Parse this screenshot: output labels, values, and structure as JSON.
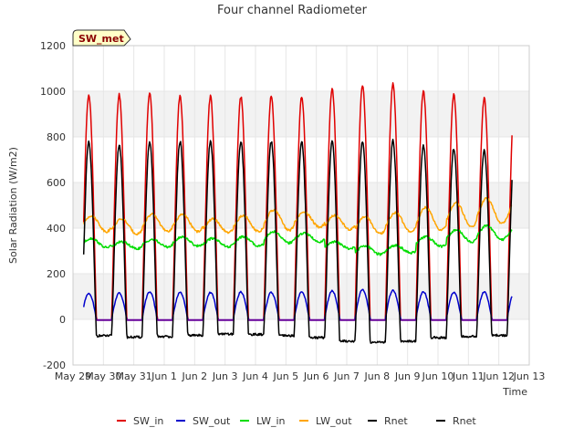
{
  "chart_data": {
    "type": "line",
    "title": "Four channel Radiometer",
    "badge": "SW_met",
    "xlabel": "Time",
    "ylabel": "Solar Radiation (W/m2)",
    "xlim": [
      0,
      15
    ],
    "ylim": [
      -200,
      1200
    ],
    "yticks": [
      -200,
      0,
      200,
      400,
      600,
      800,
      1000,
      1200
    ],
    "xtick_labels": [
      "May 29",
      "May 30",
      "May 31",
      "Jun 1",
      "Jun 2",
      "Jun 3",
      "Jun 4",
      "Jun 5",
      "Jun 6",
      "Jun 7",
      "Jun 8",
      "Jun 9",
      "Jun 10",
      "Jun 11",
      "Jun 12",
      "Jun 13"
    ],
    "x_start_day": 0.35,
    "x_end_day": 14.45,
    "points_per_day": 48,
    "daylight_window": [
      0.27,
      0.77
    ],
    "series": [
      {
        "name": "SW_in",
        "color": "#e00000",
        "kind": "sw_in",
        "daily_peaks": [
          985,
          985,
          995,
          980,
          978,
          975,
          980,
          978,
          1010,
          1025,
          1035,
          1000,
          985,
          968
        ]
      },
      {
        "name": "SW_out",
        "color": "#0000cc",
        "kind": "sw_out",
        "daily_peaks": [
          115,
          115,
          120,
          118,
          118,
          120,
          118,
          120,
          125,
          130,
          128,
          120,
          118,
          120
        ]
      },
      {
        "name": "LW_in",
        "color": "#00dd00",
        "kind": "lw",
        "daily_min": [
          315,
          310,
          318,
          322,
          318,
          322,
          335,
          340,
          310,
          285,
          292,
          320,
          340,
          350
        ],
        "daily_max": [
          355,
          340,
          350,
          362,
          355,
          362,
          385,
          378,
          340,
          322,
          325,
          362,
          392,
          410
        ]
      },
      {
        "name": "LW_out",
        "color": "#ffa500",
        "kind": "lw",
        "daily_min": [
          385,
          375,
          385,
          385,
          380,
          385,
          390,
          405,
          395,
          375,
          385,
          390,
          405,
          420
        ],
        "daily_max": [
          455,
          440,
          460,
          460,
          440,
          455,
          480,
          470,
          455,
          450,
          468,
          490,
          510,
          530
        ]
      },
      {
        "name": "Rnet",
        "color": "#000000",
        "kind": "rnet",
        "daily_peaks": [
          775,
          768,
          775,
          780,
          782,
          780,
          778,
          778,
          780,
          778,
          785,
          760,
          748,
          745
        ],
        "night_level": [
          -72,
          -78,
          -75,
          -70,
          -65,
          -66,
          -72,
          -80,
          -95,
          -100,
          -95,
          -80,
          -75,
          -70
        ]
      },
      {
        "name": "Rnet",
        "color": "#000000",
        "kind": "rnet_night_purple"
      }
    ]
  }
}
